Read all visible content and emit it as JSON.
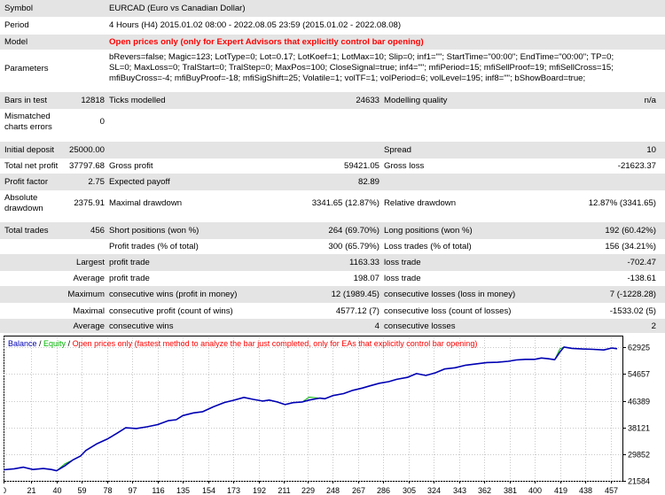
{
  "report": {
    "symbol": {
      "label": "Symbol",
      "value": "EURCAD (Euro vs Canadian Dollar)"
    },
    "period": {
      "label": "Period",
      "value": "4 Hours (H4) 2015.01.02 08:00 - 2022.08.05 23:59 (2015.01.02 - 2022.08.08)"
    },
    "model": {
      "label": "Model",
      "value": "Open prices only (only for Expert Advisors that explicitly control bar opening)"
    },
    "parameters": {
      "label": "Parameters",
      "lines": [
        "bRevers=false; Magic=123; LotType=0; Lot=0.17; LotKoef=1; LotMax=10; Slip=0; inf1=\"\"; StartTime=\"00:00\"; EndTime=\"00:00\"; TP=0;",
        "SL=0; MaxLoss=0; TralStart=0; TralStep=0; MaxPos=100; CloseSignal=true; inf4=\"\"; mfiPeriod=15; mfiSellProof=19; mfiSellCross=15;",
        "mfiBuyCross=-4; mfiBuyProof=-18; mfiSigShift=25; Volatile=1; volTF=1; volPeriod=6; volLevel=195; inf8=\"\"; bShowBoard=true;"
      ]
    },
    "bars_in_test": {
      "label": "Bars in test",
      "value": "12818"
    },
    "ticks_modelled": {
      "label": "Ticks modelled",
      "value": "24633"
    },
    "modelling_quality": {
      "label": "Modelling quality",
      "value": "n/a"
    },
    "mismatched": {
      "label_line1": "Mismatched",
      "label_line2": "charts errors",
      "value": "0"
    },
    "initial_deposit": {
      "label": "Initial deposit",
      "value": "25000.00"
    },
    "spread": {
      "label": "Spread",
      "value": "10"
    },
    "total_net_profit": {
      "label": "Total net profit",
      "value": "37797.68"
    },
    "gross_profit": {
      "label": "Gross profit",
      "value": "59421.05"
    },
    "gross_loss": {
      "label": "Gross loss",
      "value": "-21623.37"
    },
    "profit_factor": {
      "label": "Profit factor",
      "value": "2.75"
    },
    "expected_payoff": {
      "label": "Expected payoff",
      "value": "82.89"
    },
    "absolute_drawdown": {
      "label_line1": "Absolute",
      "label_line2": "drawdown",
      "value": "2375.91"
    },
    "maximal_drawdown": {
      "label": "Maximal drawdown",
      "value": "3341.65 (12.87%)"
    },
    "relative_drawdown": {
      "label": "Relative drawdown",
      "value": "12.87% (3341.65)"
    },
    "total_trades": {
      "label": "Total trades",
      "value": "456"
    },
    "short_positions": {
      "label": "Short positions (won %)",
      "value": "264 (69.70%)"
    },
    "long_positions": {
      "label": "Long positions (won %)",
      "value": "192 (60.42%)"
    },
    "profit_trades": {
      "label": "Profit trades (% of total)",
      "value": "300 (65.79%)"
    },
    "loss_trades": {
      "label": "Loss trades (% of total)",
      "value": "156 (34.21%)"
    },
    "largest": {
      "label": "Largest",
      "profit_label": "profit trade",
      "profit_value": "1163.33",
      "loss_label": "loss trade",
      "loss_value": "-702.47"
    },
    "average": {
      "label": "Average",
      "profit_label": "profit trade",
      "profit_value": "198.07",
      "loss_label": "loss trade",
      "loss_value": "-138.61"
    },
    "maximum": {
      "label": "Maximum",
      "wins_label": "consecutive wins (profit in money)",
      "wins_value": "12 (1989.45)",
      "losses_label": "consecutive losses (loss in money)",
      "losses_value": "7 (-1228.28)"
    },
    "maximal": {
      "label": "Maximal",
      "profit_label": "consecutive profit (count of wins)",
      "profit_value": "4577.12 (7)",
      "loss_label": "consecutive loss (count of losses)",
      "loss_value": "-1533.02 (5)"
    },
    "average_consec": {
      "label": "Average",
      "wins_label": "consecutive wins",
      "wins_value": "4",
      "losses_label": "consecutive losses",
      "losses_value": "2"
    }
  },
  "chart_data": {
    "type": "line",
    "legend": {
      "balance": "Balance",
      "sep1": " / ",
      "equity": "Equity",
      "sep2": " / ",
      "description": "Open prices only (fastest method to analyze the bar just completed, only for EAs that explicitly control bar opening)"
    },
    "colors": {
      "balance": "#0000b4",
      "equity": "#00b400",
      "grid": "#c8c8c8"
    },
    "x_ticks": [
      0,
      21,
      40,
      59,
      78,
      97,
      116,
      135,
      154,
      173,
      192,
      211,
      229,
      248,
      267,
      286,
      305,
      324,
      343,
      362,
      381,
      400,
      419,
      438,
      457
    ],
    "y_ticks": [
      21584,
      29852,
      38121,
      46389,
      54657,
      62925
    ],
    "xlim": [
      0,
      466
    ],
    "ylim": [
      21584,
      66000
    ],
    "series": [
      {
        "name": "Balance",
        "x": [
          0,
          8,
          15,
          22,
          30,
          36,
          40,
          46,
          52,
          58,
          62,
          70,
          78,
          85,
          92,
          100,
          108,
          116,
          124,
          130,
          135,
          143,
          150,
          158,
          166,
          173,
          181,
          188,
          195,
          200,
          206,
          212,
          218,
          225,
          230,
          238,
          242,
          248,
          256,
          263,
          270,
          276,
          283,
          290,
          296,
          304,
          311,
          318,
          325,
          332,
          340,
          348,
          356,
          364,
          372,
          380,
          386,
          393,
          400,
          405,
          410,
          415,
          419,
          422,
          428,
          436,
          444,
          452,
          458,
          462
        ],
        "y": [
          25000,
          25300,
          25800,
          25100,
          25400,
          25100,
          24700,
          26200,
          28000,
          29300,
          31000,
          33000,
          34500,
          36200,
          38000,
          37800,
          38300,
          39000,
          40200,
          40500,
          41800,
          42600,
          43000,
          44500,
          45800,
          46500,
          47400,
          46800,
          46300,
          46600,
          46000,
          45200,
          45800,
          46000,
          46600,
          47200,
          47000,
          48000,
          48600,
          49600,
          50300,
          51000,
          51800,
          52300,
          53000,
          53600,
          54800,
          54200,
          55000,
          56200,
          56600,
          57400,
          57800,
          58200,
          58300,
          58600,
          59000,
          59200,
          59200,
          59600,
          59400,
          59100,
          61500,
          63000,
          62600,
          62400,
          62300,
          62100,
          62700,
          62500
        ]
      },
      {
        "name": "Equity",
        "x": [
          0,
          8,
          15,
          22,
          30,
          36,
          40,
          46,
          52,
          58,
          62,
          70,
          78,
          85,
          92,
          100,
          108,
          116,
          124,
          130,
          135,
          143,
          150,
          158,
          166,
          173,
          181,
          188,
          195,
          200,
          206,
          212,
          218,
          225,
          230,
          238,
          242,
          248,
          256,
          263,
          270,
          276,
          283,
          290,
          296,
          304,
          311,
          318,
          325,
          332,
          340,
          348,
          356,
          364,
          372,
          380,
          386,
          393,
          400,
          405,
          410,
          415,
          419,
          422,
          428,
          436,
          444,
          452,
          458,
          462
        ],
        "y": [
          25000,
          25300,
          25800,
          25100,
          25400,
          25100,
          24700,
          26800,
          28000,
          29300,
          31000,
          33000,
          34500,
          36200,
          38000,
          37800,
          38300,
          39000,
          40200,
          40500,
          41800,
          42600,
          43000,
          44500,
          45800,
          46500,
          47400,
          46800,
          46300,
          46600,
          46000,
          45200,
          45800,
          46000,
          47500,
          47200,
          47000,
          48000,
          48600,
          49600,
          50300,
          51000,
          51800,
          52300,
          53000,
          53600,
          54800,
          54200,
          55000,
          56200,
          56600,
          57400,
          57800,
          58200,
          58300,
          58600,
          59000,
          59200,
          59200,
          59600,
          59400,
          59100,
          62500,
          63000,
          62600,
          62400,
          62300,
          62100,
          62700,
          62500
        ]
      }
    ]
  }
}
